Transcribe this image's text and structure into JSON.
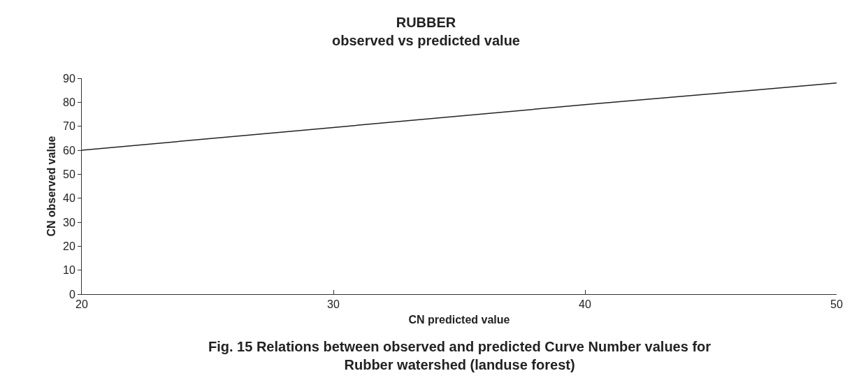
{
  "chart_data": {
    "type": "line",
    "title": "RUBBER",
    "subtitle": "observed vs predicted value",
    "xlabel": "CN predicted value",
    "ylabel": "CN observed value",
    "x": [
      20,
      30,
      40,
      50
    ],
    "series": [
      {
        "color": "#222222",
        "values": [
          60,
          69.5,
          79,
          88
        ]
      }
    ],
    "xlim": [
      20,
      50
    ],
    "xticks": [
      20,
      30,
      40,
      50
    ],
    "ylim": [
      0,
      90
    ],
    "yticks": [
      0,
      10,
      20,
      30,
      40,
      50,
      60,
      70,
      80,
      90
    ],
    "grid": false,
    "legend": false,
    "marker": "none",
    "line_style": "solid",
    "annotations": [
      "Fig. 15 Relations between observed and predicted Curve Number values for Rubber watershed (landuse forest)"
    ]
  }
}
